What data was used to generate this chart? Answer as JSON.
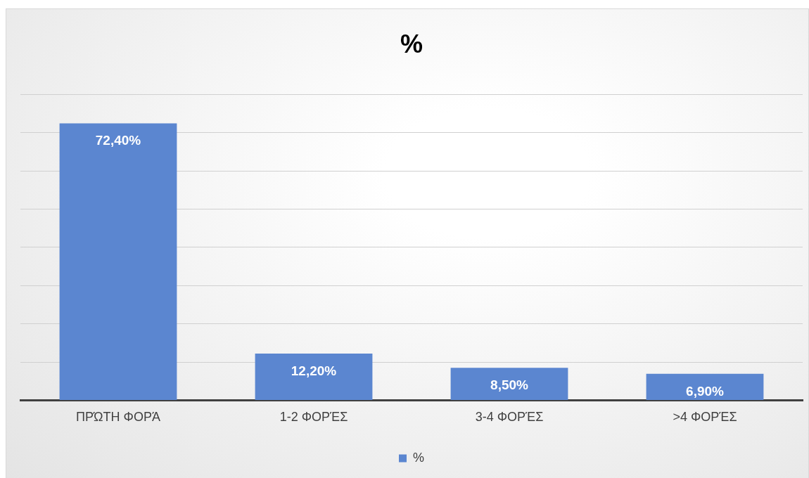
{
  "chart_data": {
    "type": "bar",
    "title": "%",
    "categories": [
      "ΠΡΏΤΗ ΦΟΡΆ",
      "1-2 ΦΟΡΈΣ",
      "3-4 ΦΟΡΈΣ",
      ">4 ΦΟΡΈΣ"
    ],
    "series": [
      {
        "name": "%",
        "color": "#5b86d0",
        "values": [
          72.4,
          12.2,
          8.5,
          6.9
        ],
        "value_labels": [
          "72,40%",
          "12,20%",
          "8,50%",
          "6,90%"
        ]
      }
    ],
    "ylim": [
      0,
      80
    ],
    "yticks": [
      {
        "value": 0,
        "label": null
      },
      {
        "value": 10,
        "label": null
      },
      {
        "value": 20,
        "label": null
      },
      {
        "value": 30,
        "label": null
      },
      {
        "value": 40,
        "label": null
      },
      {
        "value": 50,
        "label": null
      },
      {
        "value": 60,
        "label": null
      },
      {
        "value": 70,
        "label": null
      },
      {
        "value": 80,
        "label": null
      }
    ],
    "tick_labels": "x",
    "grid": "y",
    "legend": "bottom"
  }
}
